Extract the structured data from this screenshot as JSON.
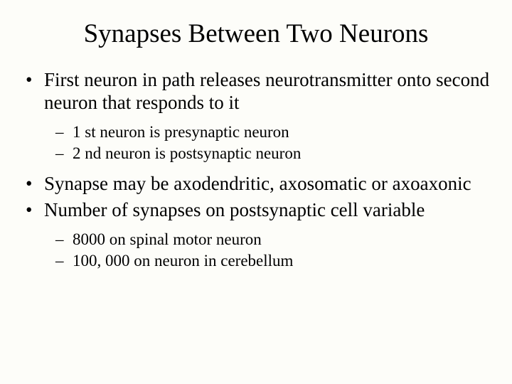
{
  "title": "Synapses Between Two Neurons",
  "bullets": [
    {
      "text": "First neuron in path releases neurotransmitter onto second neuron that responds to it",
      "sub": [
        "1 st neuron is presynaptic neuron",
        "2 nd neuron is postsynaptic neuron"
      ]
    },
    {
      "text": "Synapse may be axodendritic, axosomatic or axoaxonic",
      "sub": []
    },
    {
      "text": "Number of synapses on postsynaptic cell variable",
      "sub": [
        "8000 on spinal motor neuron",
        "100, 000 on neuron in cerebellum"
      ]
    }
  ],
  "colors": {
    "background": "#fdfdf9",
    "text": "#000000"
  },
  "typography": {
    "font_family": "Times New Roman",
    "title_fontsize": 37,
    "level1_fontsize": 27,
    "level2_fontsize": 23
  }
}
